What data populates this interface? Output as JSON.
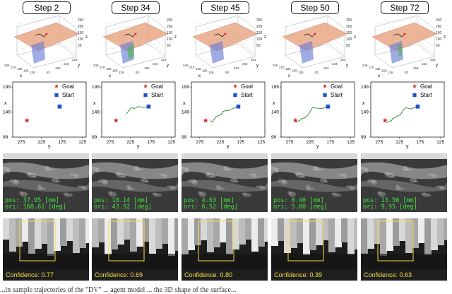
{
  "columns": [
    {
      "step": "Step 2",
      "pos": "37.95 [mm]",
      "ori": "168.61 [deg]",
      "confidence": "Confidence: 0.77",
      "path": []
    },
    {
      "step": "Step 34",
      "pos": "18.14 [mm]",
      "ori": "43.92 [deg]",
      "confidence": "Confidence: 0.69",
      "path": [
        [
          178,
          160
        ],
        [
          195,
          158
        ],
        [
          205,
          160
        ],
        [
          215,
          156
        ],
        [
          222,
          158
        ],
        [
          228,
          152
        ],
        [
          234,
          146
        ]
      ]
    },
    {
      "step": "Step 45",
      "pos": "4.63 [mm]",
      "ori": "6.52 [deg]",
      "confidence": "Confidence: 0.80",
      "path": [
        [
          178,
          160
        ],
        [
          190,
          157
        ],
        [
          198,
          154
        ],
        [
          205,
          152
        ],
        [
          210,
          152
        ],
        [
          218,
          150
        ],
        [
          222,
          144
        ],
        [
          234,
          140
        ],
        [
          240,
          134
        ],
        [
          244,
          129
        ],
        [
          248,
          132
        ]
      ]
    },
    {
      "step": "Step 50",
      "pos": "8.40 [mm]",
      "ori": "5.00 [deg]",
      "confidence": "Confidence: 0.39",
      "path": [
        [
          178,
          160
        ],
        [
          195,
          156
        ],
        [
          210,
          157
        ],
        [
          218,
          158
        ],
        [
          224,
          150
        ],
        [
          228,
          144
        ],
        [
          236,
          138
        ],
        [
          244,
          136
        ],
        [
          250,
          132
        ],
        [
          256,
          130
        ]
      ]
    },
    {
      "step": "Step 72",
      "pos": "13.50 [mm]",
      "ori": "9.95 [deg]",
      "confidence": "Confidence: 0.63",
      "path": [
        [
          178,
          160
        ],
        [
          198,
          155
        ],
        [
          208,
          158
        ],
        [
          215,
          154
        ],
        [
          222,
          144
        ],
        [
          232,
          140
        ],
        [
          236,
          138
        ],
        [
          242,
          136
        ],
        [
          244,
          132
        ],
        [
          256,
          128
        ]
      ]
    }
  ],
  "labels": {
    "pos_prefix": "pos:",
    "ori_prefix": "ori:",
    "goal": "Goal",
    "start": "Start",
    "axis_x": "x",
    "axis_y": "y",
    "axis_z": "z",
    "x_ticks": [
      "275",
      "225",
      "175",
      "125"
    ],
    "y_ticks": [
      "199",
      "149",
      "99"
    ],
    "z_ticks_3d": [
      "250",
      "200",
      "150",
      "100",
      "50"
    ],
    "x_ticks_3d": [
      "246",
      "216",
      "186",
      "156",
      "126"
    ],
    "y_ticks_3d": [
      "83",
      "163",
      "243",
      "323"
    ]
  },
  "plot": {
    "goal": [
      260,
      132
    ],
    "start": [
      180,
      160
    ],
    "xlim": [
      295,
      115
    ],
    "ylim": [
      99,
      209
    ]
  },
  "colors": {
    "goal": "#d62728",
    "start": "#1f4fd0",
    "path": "#2a8a2a",
    "text_green": "#3ee63e",
    "conf_yellow": "#f2e04a",
    "box_yellow": "#f4e04a"
  },
  "caption": "...in sample trajectories of the \"DV\" ... agent model ... the 3D shape of the surface..."
}
